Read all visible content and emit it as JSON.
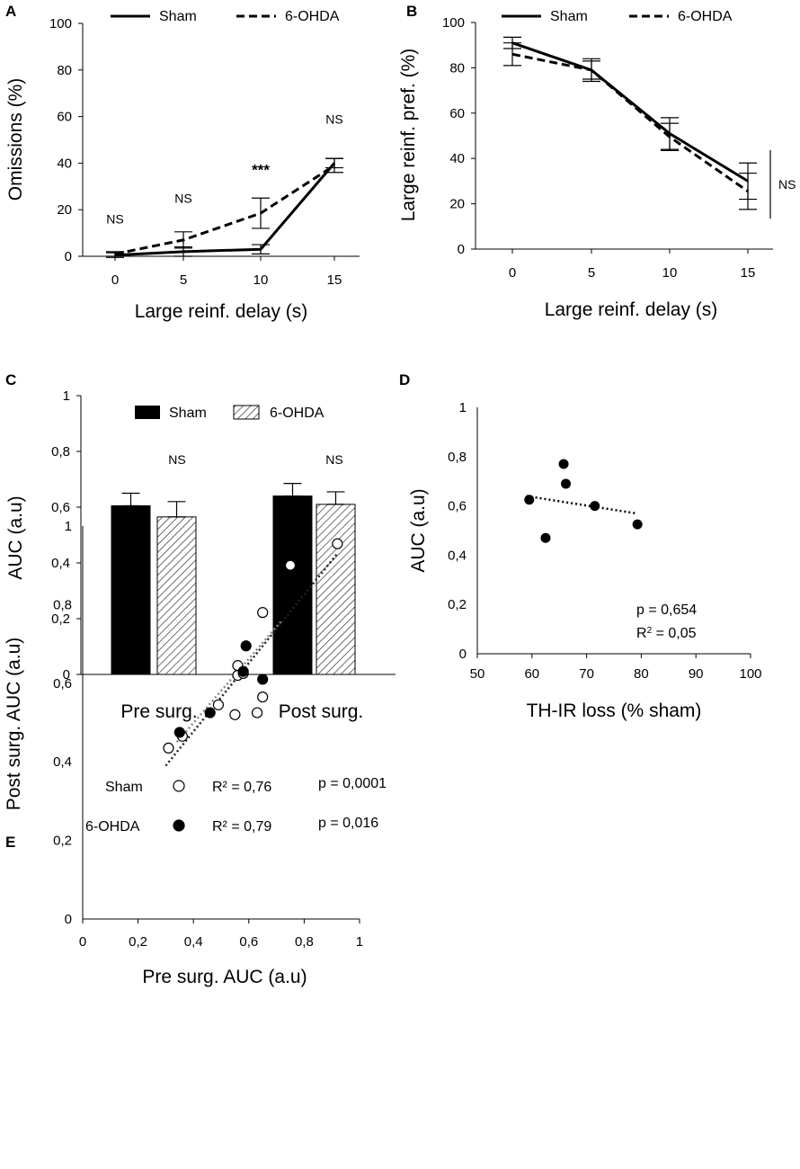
{
  "chart_data": [
    {
      "panel": "A",
      "type": "line",
      "x": [
        0,
        5,
        10,
        15
      ],
      "series": [
        {
          "name": "Sham",
          "style": "solid",
          "values": [
            0.5,
            2,
            3,
            40
          ],
          "errors": [
            1,
            2,
            2,
            2
          ]
        },
        {
          "name": "6-OHDA",
          "style": "dashed",
          "values": [
            1,
            7,
            18.5,
            39
          ],
          "errors": [
            1,
            3.5,
            6.5,
            3
          ]
        }
      ],
      "xlabel": "Large reinf. delay (s)",
      "ylabel": "Omissions (%)",
      "ylim": [
        0,
        100
      ],
      "yticks": [
        "0",
        "20",
        "40",
        "60",
        "80",
        "100"
      ],
      "xticks": [
        "0",
        "5",
        "10",
        "15"
      ],
      "annotations": [
        {
          "x": 0,
          "y": 14,
          "text": "NS"
        },
        {
          "x": 5,
          "y": 23,
          "text": "NS"
        },
        {
          "x": 10,
          "y": 35,
          "text": "***"
        },
        {
          "x": 15,
          "y": 57,
          "text": "NS"
        }
      ]
    },
    {
      "panel": "B",
      "type": "line",
      "x": [
        0,
        5,
        10,
        15
      ],
      "series": [
        {
          "name": "Sham",
          "style": "solid",
          "values": [
            91,
            79,
            51,
            30
          ],
          "errors": [
            2.5,
            5,
            7,
            8
          ]
        },
        {
          "name": "6-OHDA",
          "style": "dashed",
          "values": [
            86,
            79,
            49.5,
            25.5
          ],
          "errors": [
            5,
            4,
            6,
            8
          ]
        }
      ],
      "xlabel": "Large reinf. delay (s)",
      "ylabel": "Large reinf. pref. (%)",
      "ylim": [
        0,
        100
      ],
      "yticks": [
        "0",
        "20",
        "40",
        "60",
        "80",
        "100"
      ],
      "xticks": [
        "0",
        "5",
        "10",
        "15"
      ],
      "annotations": [
        {
          "text": "NS"
        }
      ]
    },
    {
      "panel": "C",
      "type": "bar",
      "categories": [
        "Pre surg.",
        "Post surg."
      ],
      "series": [
        {
          "name": "Sham",
          "fill": "solid",
          "values": [
            0.605,
            0.64
          ],
          "errors": [
            0.045,
            0.045
          ]
        },
        {
          "name": "6-OHDA",
          "fill": "hatched",
          "values": [
            0.565,
            0.61
          ],
          "errors": [
            0.055,
            0.045
          ]
        }
      ],
      "ylabel": "AUC (a.u)",
      "ylim": [
        0,
        1
      ],
      "yticks": [
        "0",
        "0,2",
        "0,4",
        "0,6",
        "0,8",
        "1"
      ],
      "annotations": [
        {
          "category": 0,
          "text": "NS"
        },
        {
          "category": 1,
          "text": "NS"
        }
      ]
    },
    {
      "panel": "D",
      "type": "scatter",
      "points": [
        {
          "x": 59.5,
          "y": 0.625
        },
        {
          "x": 62.5,
          "y": 0.47
        },
        {
          "x": 65.8,
          "y": 0.77
        },
        {
          "x": 66.2,
          "y": 0.69
        },
        {
          "x": 71.5,
          "y": 0.6
        },
        {
          "x": 79.3,
          "y": 0.525
        }
      ],
      "trend": {
        "x": [
          59,
          79
        ],
        "y": [
          0.64,
          0.57
        ]
      },
      "xlabel": "TH-IR loss (% sham)",
      "ylabel": "AUC (a.u)",
      "xlim": [
        50,
        100
      ],
      "ylim": [
        0,
        1
      ],
      "xticks": [
        "50",
        "60",
        "70",
        "80",
        "90",
        "100"
      ],
      "yticks": [
        "0",
        "0,2",
        "0,4",
        "0,6",
        "0,8",
        "1"
      ],
      "stats": {
        "p": "p = 0,654",
        "r2_prefix": "R",
        "r2_suffix": " = 0,05"
      }
    },
    {
      "panel": "E",
      "type": "scatter",
      "series": [
        {
          "name": "Sham",
          "marker": "open",
          "r2": "R² = 0,76",
          "p": "p = 0,0001",
          "points": [
            {
              "x": 0.31,
              "y": 0.435
            },
            {
              "x": 0.36,
              "y": 0.465
            },
            {
              "x": 0.49,
              "y": 0.545
            },
            {
              "x": 0.55,
              "y": 0.52
            },
            {
              "x": 0.56,
              "y": 0.62
            },
            {
              "x": 0.56,
              "y": 0.645
            },
            {
              "x": 0.58,
              "y": 0.625
            },
            {
              "x": 0.63,
              "y": 0.525
            },
            {
              "x": 0.65,
              "y": 0.565
            },
            {
              "x": 0.65,
              "y": 0.78
            },
            {
              "x": 0.71,
              "y": 0.775
            },
            {
              "x": 0.75,
              "y": 0.9
            },
            {
              "x": 0.92,
              "y": 0.955
            }
          ],
          "trend": {
            "x": [
              0.3,
              0.92
            ],
            "y": [
              0.39,
              0.93
            ]
          }
        },
        {
          "name": "6-OHDA",
          "marker": "filled",
          "r2": "R² = 0,79",
          "p": "p = 0,016",
          "points": [
            {
              "x": 0.35,
              "y": 0.475
            },
            {
              "x": 0.46,
              "y": 0.525
            },
            {
              "x": 0.58,
              "y": 0.63
            },
            {
              "x": 0.59,
              "y": 0.695
            },
            {
              "x": 0.65,
              "y": 0.61
            },
            {
              "x": 0.71,
              "y": 0.775
            }
          ],
          "trend": {
            "x": [
              0.34,
              0.72
            ],
            "y": [
              0.45,
              0.76
            ]
          }
        }
      ],
      "xlabel": "Pre surg. AUC (a.u)",
      "ylabel": "Post surg. AUC (a.u)",
      "xlim": [
        0,
        1
      ],
      "ylim": [
        0,
        1
      ],
      "xticks": [
        "0",
        "0,2",
        "0,4",
        "0,6",
        "0,8",
        "1"
      ],
      "yticks": [
        "0",
        "0,2",
        "0,4",
        "0,6",
        "0,8",
        "1"
      ]
    }
  ]
}
